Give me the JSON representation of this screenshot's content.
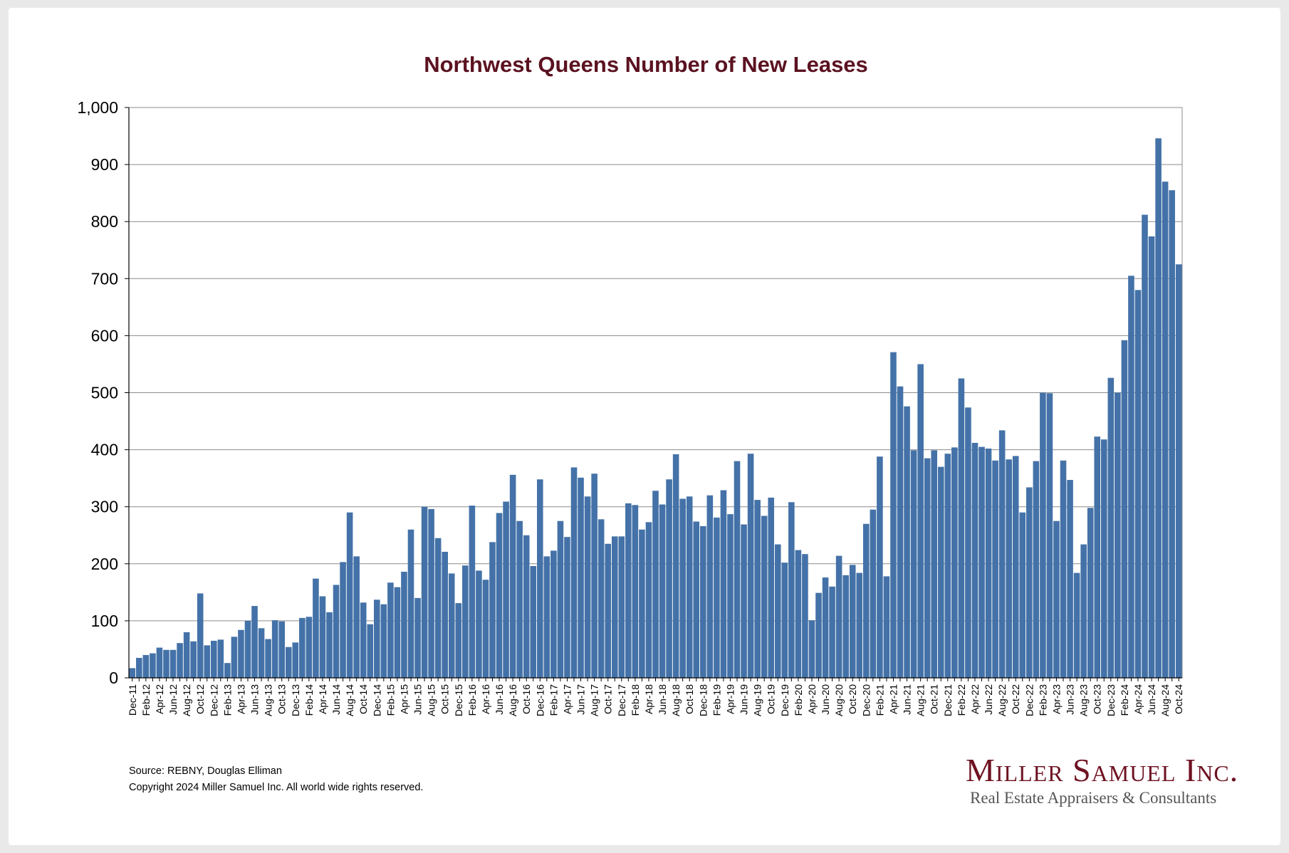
{
  "chart_data": {
    "type": "bar",
    "title": "Northwest Queens Number of New Leases",
    "xlabel": "",
    "ylabel": "",
    "ylim": [
      0,
      1000
    ],
    "yticks": [
      "0",
      "100",
      "200",
      "300",
      "400",
      "500",
      "600",
      "700",
      "800",
      "900",
      "1,000"
    ],
    "grid": true,
    "bar_color": "#4472a8",
    "title_color": "#5b1220",
    "categories": [
      "Dec-11",
      "Jan-12",
      "Feb-12",
      "Mar-12",
      "Apr-12",
      "May-12",
      "Jun-12",
      "Jul-12",
      "Aug-12",
      "Sep-12",
      "Oct-12",
      "Nov-12",
      "Dec-12",
      "Jan-13",
      "Feb-13",
      "Mar-13",
      "Apr-13",
      "May-13",
      "Jun-13",
      "Jul-13",
      "Aug-13",
      "Sep-13",
      "Oct-13",
      "Nov-13",
      "Dec-13",
      "Jan-14",
      "Feb-14",
      "Mar-14",
      "Apr-14",
      "May-14",
      "Jun-14",
      "Jul-14",
      "Aug-14",
      "Sep-14",
      "Oct-14",
      "Nov-14",
      "Dec-14",
      "Jan-15",
      "Feb-15",
      "Mar-15",
      "Apr-15",
      "May-15",
      "Jun-15",
      "Jul-15",
      "Aug-15",
      "Sep-15",
      "Oct-15",
      "Nov-15",
      "Dec-15",
      "Jan-16",
      "Feb-16",
      "Mar-16",
      "Apr-16",
      "May-16",
      "Jun-16",
      "Jul-16",
      "Aug-16",
      "Sep-16",
      "Oct-16",
      "Nov-16",
      "Dec-16",
      "Jan-17",
      "Feb-17",
      "Mar-17",
      "Apr-17",
      "May-17",
      "Jun-17",
      "Jul-17",
      "Aug-17",
      "Sep-17",
      "Oct-17",
      "Nov-17",
      "Dec-17",
      "Jan-18",
      "Feb-18",
      "Mar-18",
      "Apr-18",
      "May-18",
      "Jun-18",
      "Jul-18",
      "Aug-18",
      "Sep-18",
      "Oct-18",
      "Nov-18",
      "Dec-18",
      "Jan-19",
      "Feb-19",
      "Mar-19",
      "Apr-19",
      "May-19",
      "Jun-19",
      "Jul-19",
      "Aug-19",
      "Sep-19",
      "Oct-19",
      "Nov-19",
      "Dec-19",
      "Jan-20",
      "Feb-20",
      "Mar-20",
      "Apr-20",
      "May-20",
      "Jun-20",
      "Jul-20",
      "Aug-20",
      "Sep-20",
      "Oct-20",
      "Nov-20",
      "Dec-20",
      "Jan-21",
      "Feb-21",
      "Mar-21",
      "Apr-21",
      "May-21",
      "Jun-21",
      "Jul-21",
      "Aug-21",
      "Sep-21",
      "Oct-21",
      "Nov-21",
      "Dec-21",
      "Jan-22",
      "Feb-22",
      "Mar-22",
      "Apr-22",
      "May-22",
      "Jun-22",
      "Jul-22",
      "Aug-22",
      "Sep-22",
      "Oct-22",
      "Nov-22",
      "Dec-22",
      "Jan-23",
      "Feb-23",
      "Mar-23",
      "Apr-23",
      "May-23",
      "Jun-23",
      "Jul-23",
      "Aug-23",
      "Sep-23",
      "Oct-23",
      "Nov-23",
      "Dec-23",
      "Jan-24",
      "Feb-24",
      "Mar-24",
      "Apr-24",
      "May-24",
      "Jun-24",
      "Jul-24",
      "Aug-24",
      "Sep-24",
      "Oct-24"
    ],
    "values": [
      17,
      35,
      40,
      43,
      53,
      49,
      49,
      61,
      80,
      64,
      148,
      57,
      65,
      67,
      26,
      72,
      84,
      100,
      126,
      87,
      68,
      101,
      99,
      54,
      62,
      105,
      107,
      174,
      143,
      115,
      163,
      203,
      290,
      213,
      132,
      94,
      137,
      129,
      167,
      159,
      186,
      260,
      140,
      300,
      296,
      245,
      221,
      183,
      131,
      197,
      302,
      188,
      172,
      238,
      289,
      309,
      356,
      275,
      250,
      196,
      348,
      213,
      223,
      275,
      247,
      369,
      351,
      318,
      358,
      278,
      235,
      248,
      248,
      306,
      303,
      260,
      273,
      328,
      304,
      348,
      392,
      314,
      318,
      274,
      266,
      320,
      281,
      329,
      287,
      380,
      269,
      393,
      312,
      284,
      316,
      234,
      202,
      308,
      224,
      217,
      101,
      149,
      176,
      160,
      214,
      180,
      198,
      184,
      270,
      295,
      388,
      178,
      571,
      511,
      476,
      399,
      550,
      385,
      399,
      370,
      393,
      404,
      525,
      474,
      412,
      405,
      402,
      381,
      434,
      383,
      389,
      290,
      334,
      380,
      500,
      499,
      275,
      381,
      347,
      184,
      234,
      298,
      423,
      418,
      526,
      500,
      592,
      705,
      680,
      812,
      774,
      946,
      870,
      855,
      725
    ]
  },
  "footer": {
    "source": "Source: REBNY, Douglas Elliman",
    "copyright": "Copyright 2024 Miller Samuel Inc.  All world wide rights reserved."
  },
  "logo": {
    "name": "Miller Samuel Inc.",
    "tagline": "Real Estate Appraisers & Consultants"
  }
}
